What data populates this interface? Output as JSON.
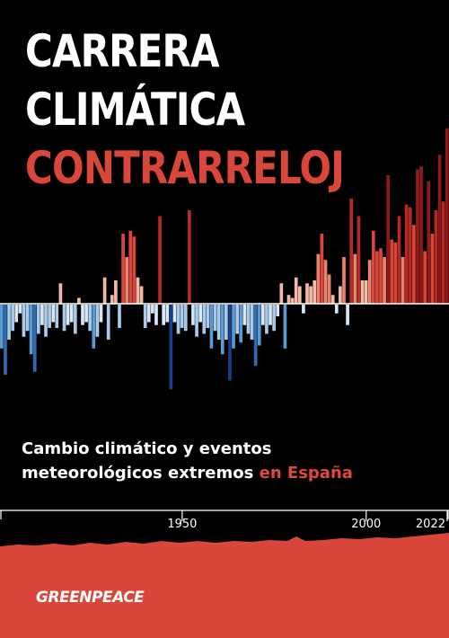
{
  "cover": {
    "title_line1": "CARRERA",
    "title_line2": "CLIMÁTICA",
    "title_line3": "CONTRARRELOJ",
    "subtitle_line1": "Cambio climático y eventos",
    "subtitle_line2": "meteorológicos extremos",
    "subtitle_accent": "en España",
    "publisher": "GREENPEACE"
  },
  "colors": {
    "background": "#000000",
    "title_accent": "#d9473b",
    "footer_red": "#d9473b"
  },
  "chart_data": {
    "type": "bar",
    "x_start": 1901,
    "x_end": 2022,
    "x_ticks": [
      "1950",
      "2000",
      "2022"
    ],
    "values": [
      -0.75,
      -1.2,
      -0.6,
      -0.45,
      -0.3,
      -0.15,
      -0.55,
      -0.45,
      -0.85,
      -1.15,
      -0.5,
      -0.35,
      -0.55,
      -0.4,
      -0.3,
      -0.4,
      0.35,
      -0.45,
      -0.35,
      -0.3,
      -0.5,
      0.1,
      -0.35,
      -0.3,
      -0.45,
      -0.75,
      -0.55,
      -0.3,
      0.45,
      -0.6,
      0.15,
      0.4,
      -0.4,
      1.2,
      0.8,
      1.25,
      1.15,
      0.45,
      0.3,
      -0.4,
      -0.3,
      -0.15,
      -0.35,
      1.5,
      -0.35,
      -0.3,
      -1.45,
      -0.3,
      -0.5,
      -0.4,
      -0.45,
      1.6,
      -0.35,
      -0.55,
      -0.3,
      -0.5,
      -0.4,
      -0.75,
      -0.45,
      -0.6,
      -0.85,
      -0.6,
      -1.3,
      -0.75,
      -0.5,
      -0.65,
      -0.35,
      -0.5,
      -0.6,
      -1.05,
      -0.7,
      -0.35,
      -0.5,
      -0.35,
      -0.45,
      -0.2,
      0.35,
      -0.75,
      0.15,
      0.1,
      0.45,
      0.3,
      -0.15,
      0.35,
      0.3,
      0.4,
      0.85,
      1.2,
      0.75,
      0.5,
      0.15,
      -0.15,
      0.3,
      0.8,
      -0.35,
      1.8,
      0.85,
      1.5,
      0.4,
      0.4,
      0.75,
      1.25,
      0.9,
      0.95,
      0.8,
      2.2,
      1.1,
      1.05,
      1.5,
      0.8,
      1.7,
      1.65,
      1.35,
      2.3,
      2.35,
      0.9,
      2.1,
      1.2,
      1.6,
      2.55,
      1.75,
      3.0
    ]
  }
}
